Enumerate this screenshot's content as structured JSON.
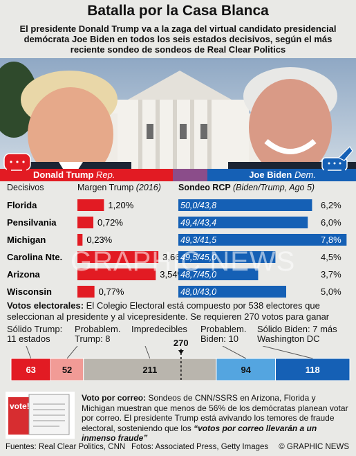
{
  "title": "Batalla por la Casa Blanca",
  "subtitle": "El presidente Donald Trump va a la zaga del virtual candidato presidencial demócrata Joe Biden en todos los seis estados decisivos, según el más reciente sondeo de sondeos de Real Clear Politics",
  "candidates": {
    "trump_name": "Donald Trump",
    "trump_party": "Rep.",
    "biden_name": "Joe Biden",
    "biden_party": "Dem."
  },
  "headers": {
    "states": "Decisivos",
    "margin": "Margen Trump",
    "margin_year": "(2016)",
    "poll": "Sondeo RCP",
    "poll_detail": "(Biden/Trump, Ago 5)"
  },
  "colors": {
    "republican": "#e21b23",
    "democrat": "#1560b5",
    "lean_rep": "#f19b96",
    "tossup": "#b9b5ad",
    "lean_dem": "#54a5e0",
    "background": "#e9e9e6"
  },
  "chart_data": [
    {
      "type": "bar",
      "name": "Margen Trump (2016)",
      "categories": [
        "Florida",
        "Pensilvania",
        "Michigan",
        "Carolina Nte.",
        "Arizona",
        "Wisconsin"
      ],
      "values": [
        1.2,
        0.72,
        0.23,
        3.66,
        3.54,
        0.77
      ],
      "labels": [
        "1,20%",
        "0,72%",
        "0,23%",
        "3,66%",
        "3,54%",
        "0,77%"
      ]
    },
    {
      "type": "bar",
      "name": "Sondeo RCP (Biden/Trump, Ago 5)",
      "categories": [
        "Florida",
        "Pensilvania",
        "Michigan",
        "Carolina Nte.",
        "Arizona",
        "Wisconsin"
      ],
      "biden": [
        50.0,
        49.4,
        49.3,
        49.5,
        48.7,
        48.0
      ],
      "trump": [
        43.8,
        43.4,
        41.5,
        45.0,
        45.0,
        43.0
      ],
      "poll_labels": [
        "50,0/43,8",
        "49,4/43,4",
        "49,3/41,5",
        "49,5/45,0",
        "48,7/45,0",
        "48,0/43,0"
      ],
      "values": [
        6.2,
        6.0,
        7.8,
        4.5,
        3.7,
        5.0
      ],
      "labels": [
        "6,2%",
        "6,0%",
        "7,8%",
        "4,5%",
        "3,7%",
        "5,0%"
      ]
    },
    {
      "type": "bar",
      "name": "Votos electorales",
      "categories": [
        "Sólido Trump",
        "Probablem. Trump",
        "Impredecibles",
        "Probablem. Biden",
        "Sólido Biden"
      ],
      "values": [
        63,
        52,
        211,
        94,
        118
      ],
      "total": 538,
      "threshold": 270
    }
  ],
  "electoral": {
    "intro_bold": "Votos electorales:",
    "intro_text": " El Colegio Electoral está compuesto por 538 electores que seleccionan al presidente y al vicepresidente. Se requieren 270 votos para ganar",
    "labels": [
      "Sólido Trump:\n11 estados",
      "Probablem.\nTrump: 8",
      "Impredecibles",
      "Probablem.\nBiden: 10",
      "Sólido Biden: 7 más\nWashington DC"
    ],
    "threshold_label": "270"
  },
  "mail": {
    "bold": "Voto por correo:",
    "text": " Sondeos de CNN/SSRS en Arizona, Florida y Michigan muestran que menos de 56% de los demócratas planean votar por correo. El presidente Trump está avivando los temores de fraude electoral, sosteniendo que los ",
    "quote": "“votos por correo llevarán a un inmenso fraude”",
    "envelope_text": "vote!"
  },
  "footer": {
    "sources": "Fuentes: Real Clear Politics, CNN",
    "photos": "Fotos: Associated Press, Getty Images",
    "credit": "© GRAPHIC NEWS"
  },
  "watermark": "GRAPHIC NEWS"
}
